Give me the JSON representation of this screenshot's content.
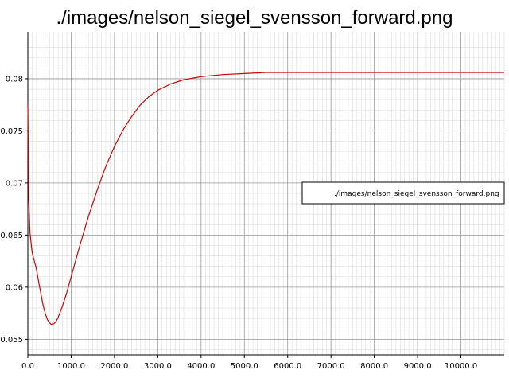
{
  "chart_data": {
    "type": "line",
    "title": "./images/nelson_siegel_svensson_forward.png",
    "xlabel": "",
    "ylabel": "",
    "xlim": [
      0,
      11000
    ],
    "ylim": [
      0.0535,
      0.0845
    ],
    "x_ticks": [
      0,
      1000,
      2000,
      3000,
      4000,
      5000,
      6000,
      7000,
      8000,
      9000,
      10000
    ],
    "x_tick_labels": [
      "0.0",
      "1000.0",
      "2000.0",
      "3000.0",
      "4000.0",
      "5000.0",
      "6000.0",
      "7000.0",
      "8000.0",
      "9000.0",
      "10000.0"
    ],
    "y_ticks": [
      0.055,
      0.06,
      0.065,
      0.07,
      0.075,
      0.08
    ],
    "y_tick_labels": [
      "0.055",
      "0.06",
      "0.065",
      "0.07",
      "0.075",
      "0.08"
    ],
    "grid": true,
    "legend_position": "right",
    "series": [
      {
        "name": "./images/nelson_siegel_svensson_forward.png",
        "color": "#cc0000",
        "points": [
          [
            0,
            0.0775
          ],
          [
            20,
            0.0685
          ],
          [
            50,
            0.0652
          ],
          [
            100,
            0.0633
          ],
          [
            150,
            0.0625
          ],
          [
            200,
            0.0617
          ],
          [
            250,
            0.0605
          ],
          [
            300,
            0.0594
          ],
          [
            350,
            0.0583
          ],
          [
            400,
            0.0575
          ],
          [
            450,
            0.0569
          ],
          [
            500,
            0.0566
          ],
          [
            550,
            0.0564
          ],
          [
            600,
            0.0565
          ],
          [
            650,
            0.0567
          ],
          [
            700,
            0.0571
          ],
          [
            800,
            0.0582
          ],
          [
            900,
            0.0595
          ],
          [
            1000,
            0.061
          ],
          [
            1200,
            0.064
          ],
          [
            1400,
            0.0668
          ],
          [
            1600,
            0.0693
          ],
          [
            1800,
            0.0716
          ],
          [
            2000,
            0.0735
          ],
          [
            2200,
            0.0751
          ],
          [
            2400,
            0.0764
          ],
          [
            2600,
            0.0775
          ],
          [
            2800,
            0.0783
          ],
          [
            3000,
            0.0789
          ],
          [
            3300,
            0.0795
          ],
          [
            3600,
            0.0799
          ],
          [
            4000,
            0.0802
          ],
          [
            4500,
            0.0804
          ],
          [
            5000,
            0.0805
          ],
          [
            5500,
            0.0806
          ],
          [
            6000,
            0.0806
          ],
          [
            7000,
            0.0806
          ],
          [
            8000,
            0.0806
          ],
          [
            9000,
            0.0806
          ],
          [
            10000,
            0.0806
          ],
          [
            11000,
            0.0806
          ]
        ]
      }
    ]
  }
}
